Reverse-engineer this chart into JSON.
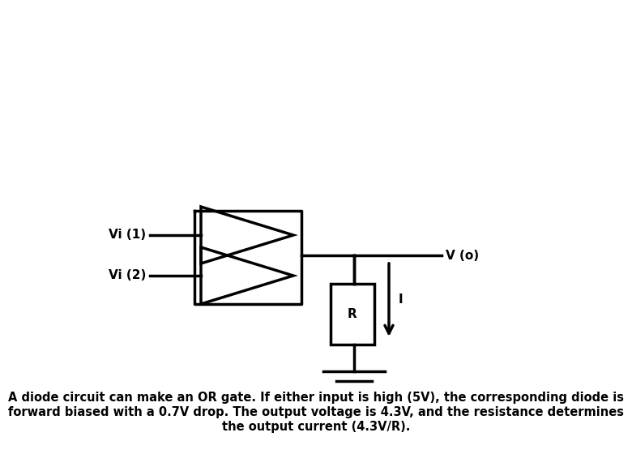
{
  "background_color": "#ffffff",
  "line_color": "#000000",
  "line_width": 2.5,
  "text_color": "#000000",
  "label_vi1": "Vi (1)",
  "label_vi2": "Vi (2)",
  "label_vo": "V (o)",
  "label_R": "R",
  "label_I": "I",
  "caption_line1": "A diode circuit can make an OR gate. If either input is high (5V), the corresponding diode is",
  "caption_line2": "forward biased with a 0.7V drop. The output voltage is 4.3V, and the resistance determines",
  "caption_line3": "the output current (4.3V/R).",
  "caption_fontsize": 10.5,
  "label_fontsize": 11,
  "font_weight": "bold"
}
